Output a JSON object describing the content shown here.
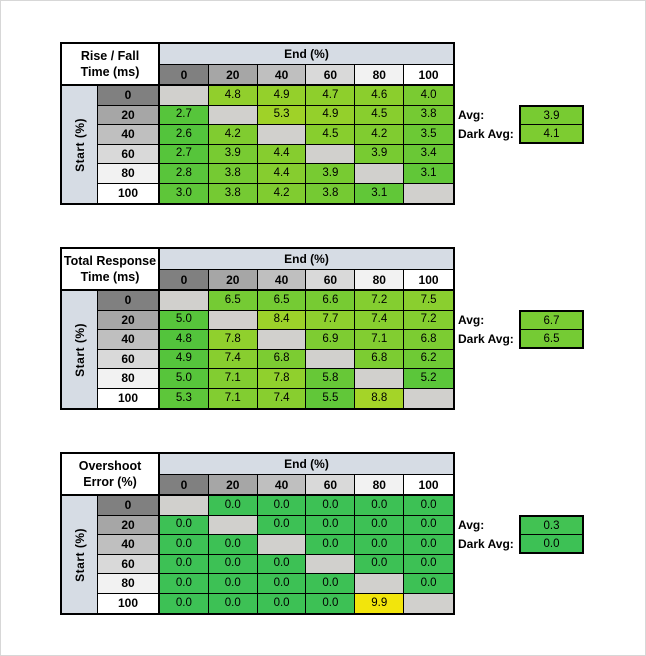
{
  "page": {
    "background": "#FFFFFF",
    "border_color": "#D7D7D7"
  },
  "palette": {
    "group_band": "#D6DCE4",
    "gray_ramp": [
      "#808080",
      "#A6A6A6",
      "#BFBFBF",
      "#D9D9D9",
      "#F2F2F2",
      "#FFFFFF"
    ],
    "blank_cell": "#D1D0CD",
    "grid_line": "#000000",
    "text": "#000000"
  },
  "tables": [
    {
      "corner_title": [
        "Rise / Fall",
        "Time (ms)"
      ],
      "col_group_label": "End (%)",
      "row_group_label": "Start (%)",
      "col_headers": [
        "0",
        "20",
        "40",
        "60",
        "80",
        "100"
      ],
      "row_headers": [
        "0",
        "20",
        "40",
        "60",
        "80",
        "100"
      ],
      "cells": [
        [
          null,
          4.8,
          4.9,
          4.7,
          4.6,
          4.0
        ],
        [
          2.7,
          null,
          5.3,
          4.9,
          4.5,
          3.8
        ],
        [
          2.6,
          4.2,
          null,
          4.5,
          4.2,
          3.5
        ],
        [
          2.7,
          3.9,
          4.4,
          null,
          3.9,
          3.4
        ],
        [
          2.8,
          3.8,
          4.4,
          3.9,
          null,
          3.1
        ],
        [
          3.0,
          3.8,
          4.2,
          3.8,
          3.1,
          null
        ]
      ],
      "avg_label": "Avg:",
      "dark_avg_label": "Dark Avg:",
      "avg": 3.9,
      "dark_avg": 4.1,
      "color_scale": {
        "min": 2.6,
        "max": 5.3,
        "from": "#53C43C",
        "to": "#9FD228"
      }
    },
    {
      "corner_title": [
        "Total Response",
        "Time (ms)"
      ],
      "col_group_label": "End (%)",
      "row_group_label": "Start (%)",
      "col_headers": [
        "0",
        "20",
        "40",
        "60",
        "80",
        "100"
      ],
      "row_headers": [
        "0",
        "20",
        "40",
        "60",
        "80",
        "100"
      ],
      "cells": [
        [
          null,
          6.5,
          6.5,
          6.6,
          7.2,
          7.5
        ],
        [
          5.0,
          null,
          8.4,
          7.7,
          7.4,
          7.2
        ],
        [
          4.8,
          7.8,
          null,
          6.9,
          7.1,
          6.8
        ],
        [
          4.9,
          7.4,
          6.8,
          null,
          6.8,
          6.2
        ],
        [
          5.0,
          7.1,
          7.8,
          5.8,
          null,
          5.2
        ],
        [
          5.3,
          7.1,
          7.4,
          5.5,
          8.8,
          null
        ]
      ],
      "avg_label": "Avg:",
      "dark_avg_label": "Dark Avg:",
      "avg": 6.7,
      "dark_avg": 6.5,
      "color_scale": {
        "min": 4.8,
        "max": 8.8,
        "from": "#53C43C",
        "to": "#A4D428"
      }
    },
    {
      "corner_title": [
        "Overshoot",
        "Error (%)"
      ],
      "col_group_label": "End (%)",
      "row_group_label": "Start (%)",
      "col_headers": [
        "0",
        "20",
        "40",
        "60",
        "80",
        "100"
      ],
      "row_headers": [
        "0",
        "20",
        "40",
        "60",
        "80",
        "100"
      ],
      "cells": [
        [
          null,
          0.0,
          0.0,
          0.0,
          0.0,
          0.0
        ],
        [
          0.0,
          null,
          0.0,
          0.0,
          0.0,
          0.0
        ],
        [
          0.0,
          0.0,
          null,
          0.0,
          0.0,
          0.0
        ],
        [
          0.0,
          0.0,
          0.0,
          null,
          0.0,
          0.0
        ],
        [
          0.0,
          0.0,
          0.0,
          0.0,
          null,
          0.0
        ],
        [
          0.0,
          0.0,
          0.0,
          0.0,
          9.9,
          null
        ]
      ],
      "avg_label": "Avg:",
      "dark_avg_label": "Dark Avg:",
      "avg": 0.3,
      "dark_avg": 0.0,
      "color_scale": {
        "min": 0.0,
        "max": 9.9,
        "from": "#3DC155",
        "to": "#F2E50C"
      }
    }
  ]
}
